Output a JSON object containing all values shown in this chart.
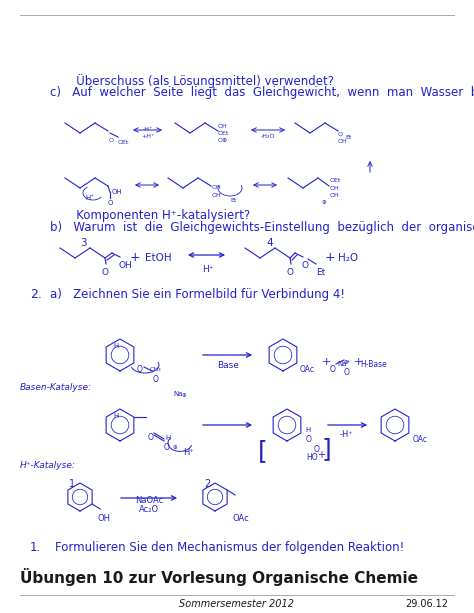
{
  "page_bg": "#ffffff",
  "text_color": "#2222cc",
  "black_color": "#1a1a1a",
  "header_left": "Sommersemester 2012",
  "header_right": "29.06.12",
  "title": "Übungen 10 zur Vorlesung Organische Chemie",
  "item1_text": "Formulieren Sie den Mechanismus der folgenden Reaktion!",
  "h_kat": "H⁺-Katalyse:",
  "basen_kat": "Basen-Katalyse:",
  "item2a_text": "a)   Zeichnen Sie ein Formelbild für Verbindung 4!",
  "item2b_text1": "b)   Warum  ist  die  Gleichgewichts-Einstellung  bezüglich  der  organischen",
  "item2b_text2": "       Komponenten H⁺-katalysiert?",
  "item2c_text1": "c)   Auf  welcher  Seite  liegt  das  Gleichgewicht,  wenn  man  Wasser  bzw.  EtOH  im",
  "item2c_text2": "       Überschuss (als Lösungsmittel) verwendet?",
  "ac2o": "Ac₂O",
  "naoac": "NaOAc",
  "fig_w": 4.74,
  "fig_h": 6.13,
  "dpi": 100
}
